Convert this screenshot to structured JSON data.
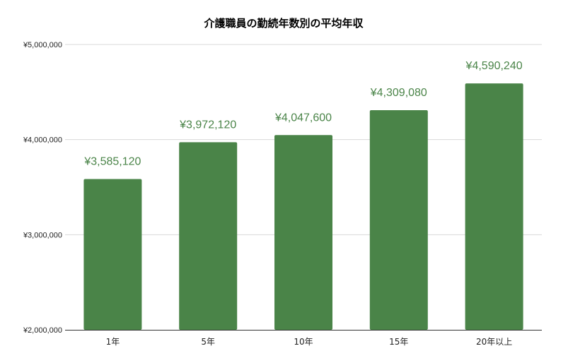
{
  "chart_data": {
    "type": "bar",
    "title": "介護職員の勤続年数別の平均年収",
    "xlabel": "",
    "ylabel": "",
    "categories": [
      "1年",
      "5年",
      "10年",
      "15年",
      "20年以上"
    ],
    "values": [
      3585120,
      3972120,
      4047600,
      4309080,
      4590240
    ],
    "data_labels": [
      "¥3,585,120",
      "¥3,972,120",
      "¥4,047,600",
      "¥4,309,080",
      "¥4,590,240"
    ],
    "ylim": [
      2000000,
      5000000
    ],
    "yticks": [
      2000000,
      3000000,
      4000000,
      5000000
    ],
    "ytick_labels": [
      "¥2,000,000",
      "¥3,000,000",
      "¥4,000,000",
      "¥5,000,000"
    ],
    "grid": true,
    "legend": "none",
    "colors": {
      "bar": "#4a8448",
      "data_label": "#4a8448"
    }
  }
}
